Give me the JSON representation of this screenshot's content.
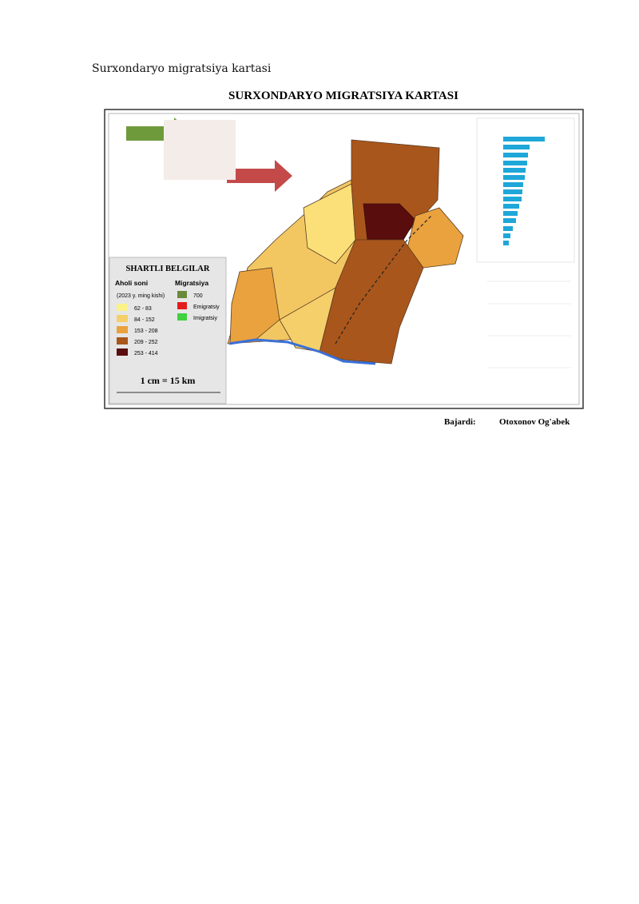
{
  "caption": "Surxondaryo migratsiya kartasi",
  "map": {
    "title": "SURXONDARYO MIGRATSIYA KARTASI",
    "legend": {
      "title": "SHARTLI BELGILAR",
      "population_heading": "Aholi soni",
      "population_note": "(2023 y. ming kishi)",
      "classes": [
        {
          "label": "62 - 83",
          "color": "#fbf28a"
        },
        {
          "label": "84 - 152",
          "color": "#f4cf6a"
        },
        {
          "label": "153 - 208",
          "color": "#e9a23e"
        },
        {
          "label": "209 - 252",
          "color": "#a9561c"
        },
        {
          "label": "253 - 414",
          "color": "#5a0d0d"
        }
      ],
      "migration_heading": "Migratsiya",
      "migration_items": [
        {
          "label": "700",
          "color": "#6a8a3a"
        },
        {
          "label": "Emigratsiy",
          "color": "#e51c1c"
        },
        {
          "label": "Imigratsiy",
          "color": "#3fd13f"
        }
      ]
    },
    "scale": "1 cm = 15 km",
    "credit_label": "Bajardi:",
    "credit_name": "Otoxonov Og'abek"
  }
}
